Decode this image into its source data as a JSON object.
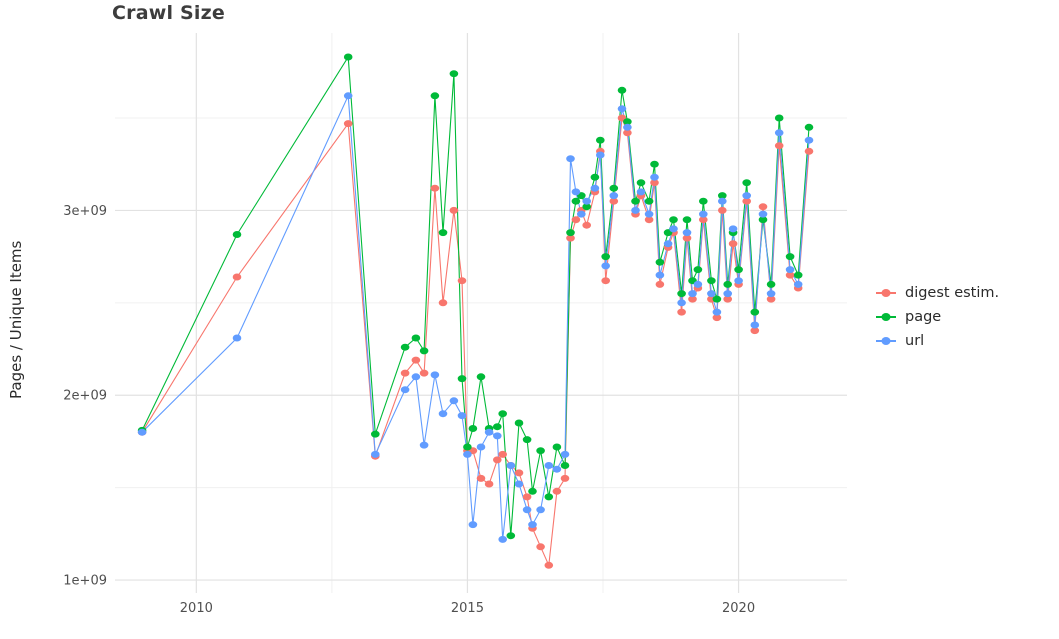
{
  "title": "Crawl Size",
  "ylabel": "Pages / Unique Items",
  "legend": {
    "items": [
      {
        "label": "digest estim.",
        "color": "#F8766D"
      },
      {
        "label": "page",
        "color": "#00BA38"
      },
      {
        "label": "url",
        "color": "#619CFF"
      }
    ]
  },
  "chart_data": {
    "type": "line",
    "title": "Crawl Size",
    "xlabel": "",
    "ylabel": "Pages / Unique Items",
    "legend_position": "right",
    "grid": true,
    "y_scale": 1000000000,
    "y_unit_note": "values are billions of pages / unique items",
    "xlim": [
      2008.5,
      2022.0
    ],
    "ylim_billions": [
      0.93,
      3.96
    ],
    "xticks": [
      {
        "value": 2010,
        "label": "2010"
      },
      {
        "value": 2015,
        "label": "2015"
      },
      {
        "value": 2020,
        "label": "2020"
      }
    ],
    "yticks": [
      {
        "value": 1,
        "label": "1e+09"
      },
      {
        "value": 2,
        "label": "2e+09"
      },
      {
        "value": 3,
        "label": "3e+09"
      }
    ],
    "x": [
      2009.0,
      2010.75,
      2012.8,
      2013.3,
      2013.85,
      2014.05,
      2014.2,
      2014.4,
      2014.55,
      2014.75,
      2014.9,
      2015.0,
      2015.1,
      2015.25,
      2015.4,
      2015.55,
      2015.65,
      2015.8,
      2015.95,
      2016.1,
      2016.2,
      2016.35,
      2016.5,
      2016.65,
      2016.8,
      2016.9,
      2017.0,
      2017.1,
      2017.2,
      2017.35,
      2017.45,
      2017.55,
      2017.7,
      2017.85,
      2017.95,
      2018.1,
      2018.2,
      2018.35,
      2018.45,
      2018.55,
      2018.7,
      2018.8,
      2018.95,
      2019.05,
      2019.15,
      2019.25,
      2019.35,
      2019.5,
      2019.6,
      2019.7,
      2019.8,
      2019.9,
      2020.0,
      2020.15,
      2020.3,
      2020.45,
      2020.6,
      2020.75,
      2020.95,
      2021.1,
      2021.3
    ],
    "series": [
      {
        "name": "digest estim.",
        "color": "#F8766D",
        "values": [
          1.8,
          2.64,
          3.47,
          1.67,
          2.12,
          2.19,
          2.12,
          3.12,
          2.5,
          3.0,
          2.62,
          1.7,
          1.7,
          1.55,
          1.52,
          1.65,
          1.68,
          1.62,
          1.58,
          1.45,
          1.28,
          1.18,
          1.08,
          1.48,
          1.55,
          2.85,
          2.95,
          3.0,
          2.92,
          3.1,
          3.32,
          2.62,
          3.05,
          3.5,
          3.42,
          2.98,
          3.08,
          2.95,
          3.15,
          2.6,
          2.8,
          2.88,
          2.45,
          2.85,
          2.52,
          2.58,
          2.95,
          2.52,
          2.42,
          3.0,
          2.52,
          2.82,
          2.6,
          3.05,
          2.35,
          3.02,
          2.52,
          3.35,
          2.65,
          2.58,
          3.32
        ]
      },
      {
        "name": "page",
        "color": "#00BA38",
        "values": [
          1.81,
          2.87,
          3.83,
          1.79,
          2.26,
          2.31,
          2.24,
          3.62,
          2.88,
          3.74,
          2.09,
          1.72,
          1.82,
          2.1,
          1.82,
          1.83,
          1.9,
          1.24,
          1.85,
          1.76,
          1.48,
          1.7,
          1.45,
          1.72,
          1.62,
          2.88,
          3.05,
          3.08,
          3.02,
          3.18,
          3.38,
          2.75,
          3.12,
          3.65,
          3.48,
          3.05,
          3.15,
          3.05,
          3.25,
          2.72,
          2.88,
          2.95,
          2.55,
          2.95,
          2.62,
          2.68,
          3.05,
          2.62,
          2.52,
          3.08,
          2.6,
          2.88,
          2.68,
          3.15,
          2.45,
          2.95,
          2.6,
          3.5,
          2.75,
          2.65,
          3.45
        ]
      },
      {
        "name": "url",
        "color": "#619CFF",
        "values": [
          1.8,
          2.31,
          3.62,
          1.68,
          2.03,
          2.1,
          1.73,
          2.11,
          1.9,
          1.97,
          1.89,
          1.68,
          1.3,
          1.72,
          1.8,
          1.78,
          1.22,
          1.62,
          1.52,
          1.38,
          1.3,
          1.38,
          1.62,
          1.6,
          1.68,
          3.28,
          3.1,
          2.98,
          3.05,
          3.12,
          3.3,
          2.7,
          3.08,
          3.55,
          3.45,
          3.0,
          3.1,
          2.98,
          3.18,
          2.65,
          2.82,
          2.9,
          2.5,
          2.88,
          2.55,
          2.6,
          2.98,
          2.55,
          2.45,
          3.05,
          2.55,
          2.9,
          2.62,
          3.08,
          2.38,
          2.98,
          2.55,
          3.42,
          2.68,
          2.6,
          3.38
        ]
      }
    ]
  }
}
